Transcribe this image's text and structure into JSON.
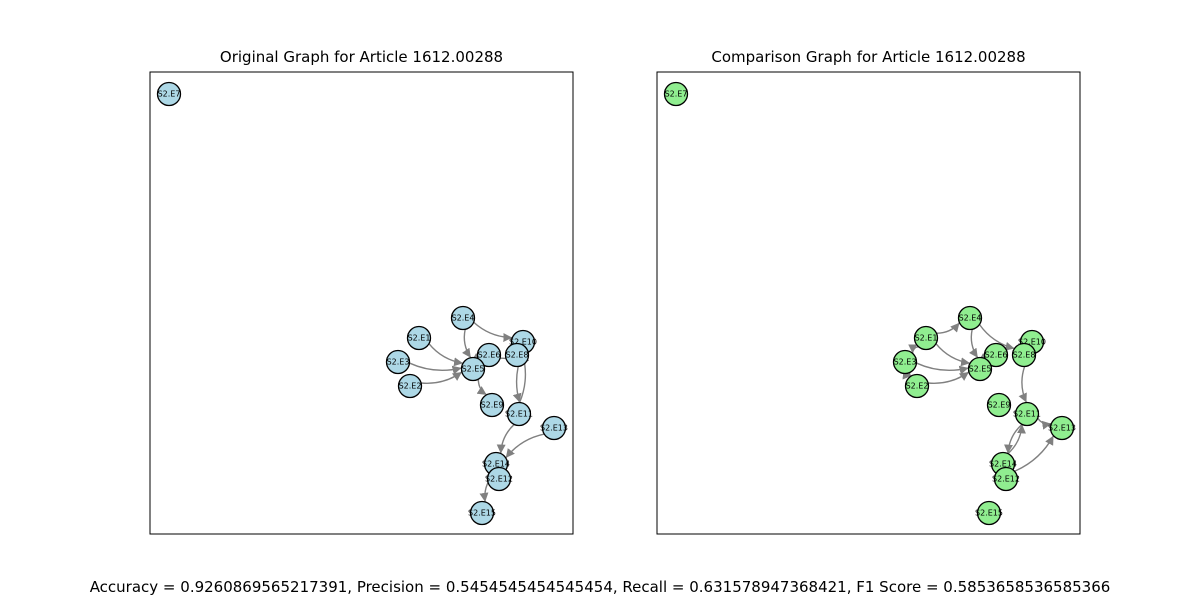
{
  "left_graph": {
    "title": "Original Graph for Article 1612.00288",
    "node_color": "#add8e6",
    "nodes": [
      {
        "id": "S2.E7",
        "label": "S2.E7"
      },
      {
        "id": "S2.E4",
        "label": "S2.E4"
      },
      {
        "id": "S2.E1",
        "label": "S2.E1"
      },
      {
        "id": "S2.E3",
        "label": "S2.E3"
      },
      {
        "id": "S2.E2",
        "label": "S2.E2"
      },
      {
        "id": "S2.E6",
        "label": "S2.E6"
      },
      {
        "id": "S2.E5",
        "label": "S2.E5"
      },
      {
        "id": "S2.E10",
        "label": "S2.E10"
      },
      {
        "id": "S2.E8",
        "label": "S2.E8"
      },
      {
        "id": "S2.E9",
        "label": "S2.E9"
      },
      {
        "id": "S2.E11",
        "label": "S2.E11"
      },
      {
        "id": "S2.E13",
        "label": "S2.E13"
      },
      {
        "id": "S2.E14",
        "label": "S2.E14"
      },
      {
        "id": "S2.E12",
        "label": "S2.E12"
      },
      {
        "id": "S2.E15",
        "label": "S2.E15"
      }
    ],
    "edges": [
      [
        "S2.E1",
        "S2.E5"
      ],
      [
        "S2.E3",
        "S2.E5"
      ],
      [
        "S2.E2",
        "S2.E5"
      ],
      [
        "S2.E4",
        "S2.E5"
      ],
      [
        "S2.E4",
        "S2.E10"
      ],
      [
        "S2.E6",
        "S2.E5"
      ],
      [
        "S2.E5",
        "S2.E9"
      ],
      [
        "S2.E8",
        "S2.E5"
      ],
      [
        "S2.E10",
        "S2.E11"
      ],
      [
        "S2.E11",
        "S2.E10"
      ],
      [
        "S2.E13",
        "S2.E14"
      ],
      [
        "S2.E11",
        "S2.E14"
      ],
      [
        "S2.E14",
        "S2.E15"
      ]
    ]
  },
  "right_graph": {
    "title": "Comparison Graph for Article 1612.00288",
    "node_color": "#90ee90",
    "nodes": [
      {
        "id": "S2.E7",
        "label": "S2.E7"
      },
      {
        "id": "S2.E4",
        "label": "S2.E4"
      },
      {
        "id": "S2.E1",
        "label": "S2.E1"
      },
      {
        "id": "S2.E3",
        "label": "S2.E3"
      },
      {
        "id": "S2.E2",
        "label": "S2.E2"
      },
      {
        "id": "S2.E6",
        "label": "S2.E6"
      },
      {
        "id": "S2.E5",
        "label": "S2.E5"
      },
      {
        "id": "S2.E10",
        "label": "S2.E10"
      },
      {
        "id": "S2.E8",
        "label": "S2.E8"
      },
      {
        "id": "S2.E9",
        "label": "S2.E9"
      },
      {
        "id": "S2.E11",
        "label": "S2.E11"
      },
      {
        "id": "S2.E13",
        "label": "S2.E13"
      },
      {
        "id": "S2.E14",
        "label": "S2.E14"
      },
      {
        "id": "S2.E12",
        "label": "S2.E12"
      },
      {
        "id": "S2.E15",
        "label": "S2.E15"
      }
    ],
    "edges": [
      [
        "S2.E1",
        "S2.E4"
      ],
      [
        "S2.E1",
        "S2.E5"
      ],
      [
        "S2.E3",
        "S2.E5"
      ],
      [
        "S2.E2",
        "S2.E5"
      ],
      [
        "S2.E4",
        "S2.E5"
      ],
      [
        "S2.E4",
        "S2.E8"
      ],
      [
        "S2.E6",
        "S2.E5"
      ],
      [
        "S2.E8",
        "S2.E11"
      ],
      [
        "S2.E11",
        "S2.E14"
      ],
      [
        "S2.E14",
        "S2.E11"
      ],
      [
        "S2.E11",
        "S2.E13"
      ],
      [
        "S2.E12",
        "S2.E13"
      ],
      [
        "S2.E1",
        "S2.E3"
      ],
      [
        "S2.E3",
        "S2.E2"
      ]
    ]
  },
  "metrics": {
    "text": "Accuracy = 0.9260869565217391, Precision = 0.5454545454545454, Recall = 0.631578947368421, F1 Score = 0.5853658536585366"
  }
}
